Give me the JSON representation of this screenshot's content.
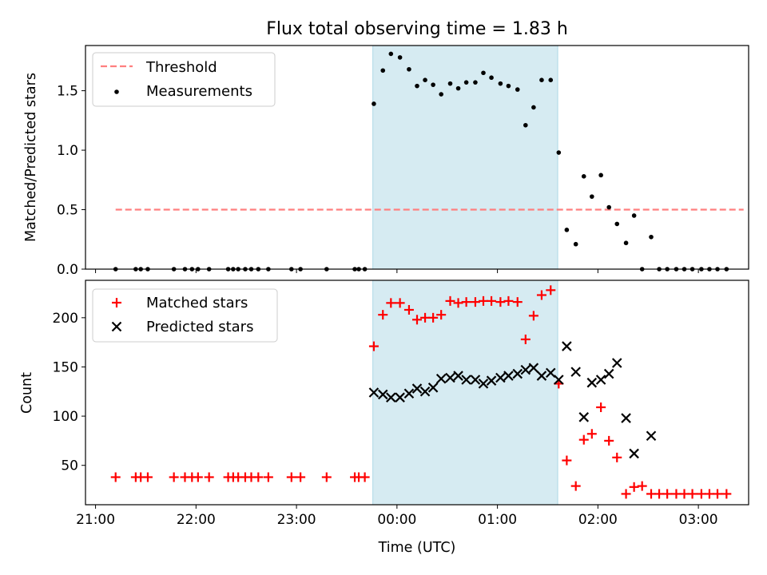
{
  "title": "Flux total observing time = 1.83 h",
  "xlabel": "Time (UTC)",
  "colors": {
    "threshold": "#ff7f7f",
    "measurements": "#000000",
    "matched": "#ff0000",
    "predicted": "#000000",
    "span": "#add8e6"
  },
  "chart_data": [
    {
      "type": "scatter",
      "ylabel": "Matched/Predicted stars",
      "ylim": [
        0,
        1.88
      ],
      "yticks": [
        "0.0",
        "0.5",
        "1.0",
        "1.5"
      ],
      "xticks": [
        "21:00",
        "22:00",
        "23:00",
        "00:00",
        "01:00",
        "02:00",
        "03:00"
      ],
      "xlim_hours_from_2100": [
        -0.1,
        6.5
      ],
      "span_hours_from_2100": [
        2.76,
        4.6
      ],
      "legend": {
        "position": "upper left",
        "entries": [
          "Threshold",
          "Measurements"
        ]
      },
      "series": [
        {
          "name": "Threshold",
          "style": "dashed-line",
          "x": [
            0.2,
            6.45
          ],
          "y": [
            0.5,
            0.5
          ]
        },
        {
          "name": "Measurements",
          "style": "dot",
          "x": [
            0.2,
            0.4,
            0.45,
            0.52,
            0.78,
            0.89,
            0.96,
            1.02,
            1.13,
            1.32,
            1.37,
            1.42,
            1.49,
            1.55,
            1.62,
            1.72,
            1.95,
            2.04,
            2.3,
            2.58,
            2.62,
            2.68,
            2.77,
            2.86,
            2.94,
            3.03,
            3.12,
            3.2,
            3.28,
            3.36,
            3.44,
            3.53,
            3.61,
            3.69,
            3.78,
            3.86,
            3.94,
            4.03,
            4.11,
            4.2,
            4.28,
            4.36,
            4.44,
            4.53,
            4.61,
            4.69,
            4.78,
            4.86,
            4.94,
            5.03,
            5.11,
            5.19,
            5.28,
            5.36,
            5.44,
            5.53,
            5.61,
            5.69,
            5.78,
            5.86,
            5.94,
            6.03,
            6.11,
            6.19,
            6.28
          ],
          "y": [
            0,
            0,
            0,
            0,
            0,
            0,
            0,
            0,
            0,
            0,
            0,
            0,
            0,
            0,
            0,
            0,
            0,
            0,
            0,
            0,
            0,
            0,
            1.39,
            1.67,
            1.81,
            1.78,
            1.68,
            1.54,
            1.59,
            1.55,
            1.47,
            1.56,
            1.52,
            1.57,
            1.57,
            1.65,
            1.61,
            1.56,
            1.54,
            1.51,
            1.21,
            1.36,
            1.59,
            1.59,
            0.98,
            0.33,
            0.21,
            0.78,
            0.61,
            0.79,
            0.52,
            0.38,
            0.22,
            0.45,
            0,
            0.27,
            0,
            0,
            0,
            0,
            0,
            0,
            0,
            0,
            0
          ]
        }
      ]
    },
    {
      "type": "scatter",
      "ylabel": "Count",
      "ylim": [
        10,
        238
      ],
      "yticks": [
        "50",
        "100",
        "150",
        "200"
      ],
      "xticks": [
        "21:00",
        "22:00",
        "23:00",
        "00:00",
        "01:00",
        "02:00",
        "03:00"
      ],
      "xlim_hours_from_2100": [
        -0.1,
        6.5
      ],
      "span_hours_from_2100": [
        2.76,
        4.6
      ],
      "legend": {
        "position": "upper left",
        "entries": [
          "Matched stars",
          "Predicted stars"
        ]
      },
      "series": [
        {
          "name": "Matched stars",
          "style": "plus",
          "x": [
            0.2,
            0.4,
            0.45,
            0.52,
            0.78,
            0.89,
            0.96,
            1.02,
            1.13,
            1.32,
            1.37,
            1.42,
            1.49,
            1.55,
            1.62,
            1.72,
            1.95,
            2.04,
            2.3,
            2.58,
            2.62,
            2.68,
            2.77,
            2.86,
            2.94,
            3.03,
            3.12,
            3.2,
            3.28,
            3.36,
            3.44,
            3.53,
            3.61,
            3.69,
            3.78,
            3.86,
            3.94,
            4.03,
            4.11,
            4.2,
            4.28,
            4.36,
            4.44,
            4.53,
            4.61,
            4.69,
            4.78,
            4.86,
            4.94,
            5.03,
            5.11,
            5.19,
            5.28,
            5.36,
            5.44,
            5.53,
            5.61,
            5.69,
            5.78,
            5.86,
            5.94,
            6.03,
            6.11,
            6.19,
            6.28
          ],
          "y": [
            38,
            38,
            38,
            38,
            38,
            38,
            38,
            38,
            38,
            38,
            38,
            38,
            38,
            38,
            38,
            38,
            38,
            38,
            38,
            38,
            38,
            38,
            171,
            203,
            215,
            215,
            208,
            198,
            200,
            200,
            203,
            217,
            215,
            216,
            216,
            217,
            217,
            216,
            217,
            216,
            178,
            202,
            223,
            228,
            133,
            55,
            29,
            76,
            82,
            109,
            75,
            58,
            21,
            28,
            29,
            21,
            21,
            21,
            21,
            21,
            21,
            21,
            21,
            21,
            21
          ]
        },
        {
          "name": "Predicted stars",
          "style": "x",
          "x": [
            2.77,
            2.86,
            2.94,
            3.03,
            3.12,
            3.2,
            3.28,
            3.36,
            3.44,
            3.53,
            3.61,
            3.69,
            3.78,
            3.86,
            3.94,
            4.03,
            4.11,
            4.2,
            4.28,
            4.36,
            4.44,
            4.53,
            4.61,
            4.69,
            4.78,
            4.86,
            4.94,
            5.03,
            5.11,
            5.19,
            5.28,
            5.36,
            5.53
          ],
          "y": [
            124,
            122,
            119,
            119,
            123,
            128,
            125,
            129,
            138,
            139,
            141,
            137,
            137,
            133,
            136,
            139,
            141,
            143,
            147,
            149,
            141,
            144,
            137,
            171,
            145,
            99,
            134,
            137,
            143,
            154,
            98,
            62,
            80
          ]
        }
      ]
    }
  ]
}
